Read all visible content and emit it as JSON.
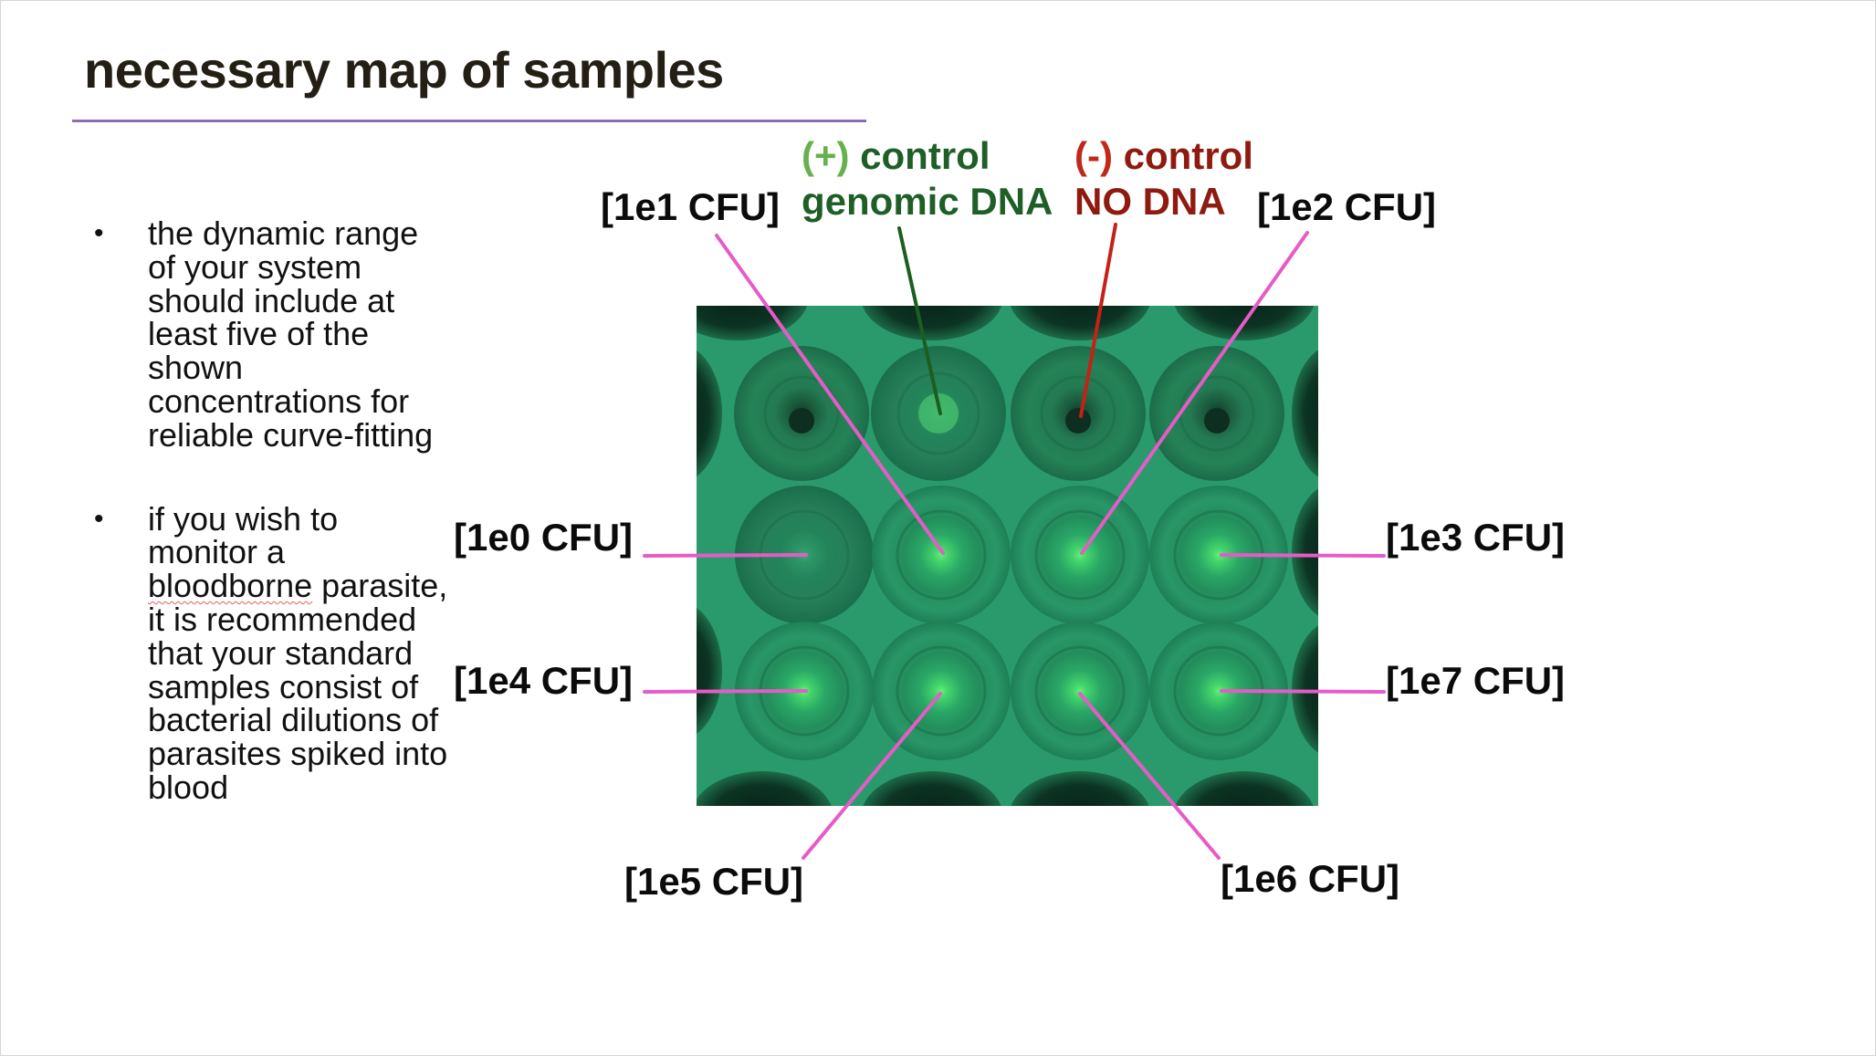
{
  "slide": {
    "title": "necessary map of samples",
    "bullets": [
      {
        "text": "the dynamic range of your system should include at least five of the shown concentrations for reliable curve-fitting"
      },
      {
        "text_before": "if you wish to monitor a ",
        "underlined_word": "bloodborne",
        "text_after": " parasite, it is recommended that your standard samples consist of bacterial dilutions of parasites spiked into blood"
      }
    ]
  },
  "figure": {
    "image": "green fluorescent well plate photo (4x3 wells)",
    "labels": {
      "pos_control_sign": "(+)",
      "pos_control_word": "control",
      "pos_control_sub": "genomic DNA",
      "neg_control_sign": "(-)",
      "neg_control_word": "control",
      "neg_control_sub": "NO DNA",
      "e0": "[1e0 CFU]",
      "e1": "[1e1 CFU]",
      "e2": "[1e2 CFU]",
      "e3": "[1e3 CFU]",
      "e4": "[1e4 CFU]",
      "e5": "[1e5 CFU]",
      "e6": "[1e6 CFU]",
      "e7": "[1e7 CFU]"
    },
    "colors": {
      "pointer_magenta": "#e65bc8",
      "pointer_pos_control": "#1c5e1e",
      "pointer_neg_control": "#c42217",
      "pos_control_text": "#1e5f27",
      "pos_control_sign": "#66b14c",
      "neg_control_text": "#8f1b10",
      "neg_control_sign": "#c0281a",
      "plate_green": "#2a9a6c"
    }
  }
}
